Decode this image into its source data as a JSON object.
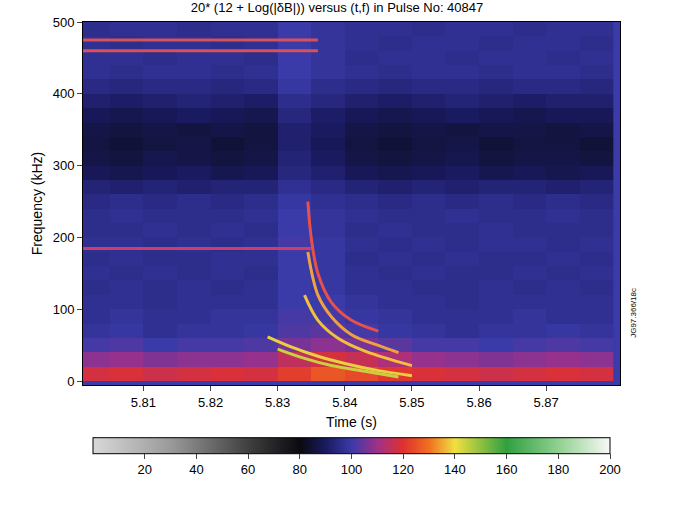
{
  "chart_data": {
    "type": "heatmap",
    "title": "20* (12 + Log(|δB|)) versus (t,f) in Pulse No: 40847",
    "x_label": "Time (s)",
    "y_label": "Frequency (kHz)",
    "annotation": "JG97.366/18c",
    "xlim": [
      5.801,
      5.881
    ],
    "ylim": [
      -5,
      500
    ],
    "xticks": [
      5.81,
      5.82,
      5.83,
      5.84,
      5.85,
      5.86,
      5.87
    ],
    "yticks": [
      0,
      100,
      200,
      300,
      400,
      500
    ],
    "heatmap": {
      "x": [
        5.8025,
        5.8075,
        5.8125,
        5.8175,
        5.8225,
        5.8275,
        5.8325,
        5.8375,
        5.8425,
        5.8475,
        5.8525,
        5.8575,
        5.8625,
        5.8675,
        5.8725,
        5.8775
      ],
      "y": [
        10,
        30,
        50,
        70,
        90,
        110,
        130,
        150,
        170,
        190,
        210,
        230,
        250,
        270,
        290,
        310,
        330,
        350,
        370,
        390,
        410,
        430,
        450,
        470,
        490
      ],
      "z": [
        [
          118,
          119,
          117,
          118,
          119,
          118,
          122,
          126,
          124,
          121,
          119,
          118,
          117,
          118,
          119,
          118
        ],
        [
          108,
          109,
          107,
          108,
          108,
          109,
          115,
          118,
          116,
          112,
          109,
          108,
          107,
          108,
          109,
          108
        ],
        [
          101,
          102,
          100,
          101,
          101,
          102,
          106,
          108,
          106,
          103,
          101,
          101,
          100,
          101,
          102,
          101
        ],
        [
          98,
          99,
          97,
          98,
          98,
          99,
          102,
          103,
          101,
          99,
          98,
          97,
          98,
          98,
          99,
          98
        ],
        [
          97,
          98,
          97,
          97,
          98,
          98,
          101,
          101,
          99,
          98,
          97,
          97,
          97,
          98,
          97,
          97
        ],
        [
          97,
          97,
          96,
          97,
          97,
          97,
          100,
          100,
          98,
          97,
          97,
          96,
          97,
          97,
          97,
          97
        ],
        [
          96,
          97,
          96,
          97,
          96,
          97,
          100,
          99,
          97,
          97,
          96,
          96,
          97,
          96,
          97,
          96
        ],
        [
          97,
          96,
          97,
          96,
          97,
          96,
          100,
          99,
          97,
          96,
          97,
          96,
          96,
          97,
          96,
          97
        ],
        [
          96,
          97,
          96,
          96,
          97,
          97,
          100,
          99,
          96,
          97,
          96,
          97,
          96,
          96,
          97,
          96
        ],
        [
          97,
          97,
          96,
          97,
          96,
          97,
          101,
          99,
          97,
          96,
          97,
          96,
          97,
          97,
          96,
          97
        ],
        [
          96,
          96,
          97,
          96,
          97,
          96,
          100,
          98,
          96,
          97,
          96,
          96,
          97,
          96,
          96,
          96
        ],
        [
          96,
          97,
          96,
          96,
          96,
          97,
          100,
          98,
          97,
          96,
          96,
          97,
          96,
          96,
          97,
          96
        ],
        [
          95,
          96,
          95,
          96,
          95,
          96,
          99,
          97,
          96,
          95,
          96,
          95,
          96,
          95,
          96,
          95
        ],
        [
          93,
          92,
          93,
          92,
          93,
          93,
          97,
          95,
          93,
          92,
          93,
          92,
          93,
          93,
          92,
          93
        ],
        [
          89,
          88,
          89,
          90,
          88,
          89,
          94,
          92,
          89,
          88,
          89,
          90,
          88,
          89,
          88,
          89
        ],
        [
          87,
          86,
          88,
          87,
          86,
          87,
          93,
          90,
          87,
          86,
          87,
          88,
          86,
          87,
          87,
          86
        ],
        [
          86,
          85,
          86,
          87,
          85,
          86,
          92,
          89,
          86,
          85,
          86,
          87,
          85,
          86,
          86,
          85
        ],
        [
          87,
          86,
          87,
          86,
          87,
          86,
          92,
          90,
          87,
          86,
          87,
          86,
          87,
          87,
          86,
          87
        ],
        [
          89,
          88,
          89,
          90,
          89,
          88,
          94,
          91,
          89,
          88,
          89,
          90,
          89,
          88,
          89,
          89
        ],
        [
          92,
          91,
          92,
          93,
          92,
          91,
          96,
          94,
          92,
          91,
          92,
          93,
          92,
          91,
          92,
          92
        ],
        [
          95,
          94,
          95,
          95,
          94,
          95,
          99,
          96,
          95,
          94,
          95,
          95,
          94,
          95,
          95,
          94
        ],
        [
          97,
          96,
          97,
          97,
          96,
          97,
          100,
          98,
          97,
          96,
          97,
          97,
          96,
          97,
          97,
          96
        ],
        [
          97,
          97,
          96,
          97,
          97,
          96,
          100,
          98,
          96,
          97,
          97,
          96,
          97,
          97,
          96,
          97
        ],
        [
          97,
          96,
          97,
          97,
          96,
          97,
          100,
          98,
          97,
          96,
          97,
          97,
          96,
          97,
          97,
          96
        ],
        [
          96,
          97,
          97,
          96,
          97,
          97,
          100,
          98,
          97,
          97,
          96,
          97,
          97,
          96,
          97,
          97
        ]
      ],
      "zlim": [
        0,
        200
      ],
      "zticks": [
        20,
        40,
        60,
        80,
        100,
        120,
        140,
        160,
        180,
        200
      ]
    },
    "series": [
      {
        "type": "line",
        "color": "#d8505a",
        "x": [
          5.801,
          5.836
        ],
        "y": [
          475,
          475
        ]
      },
      {
        "type": "line",
        "color": "#d8505a",
        "x": [
          5.801,
          5.836
        ],
        "y": [
          460,
          460
        ]
      },
      {
        "type": "line",
        "color": "#c8406a",
        "x": [
          5.801,
          5.835
        ],
        "y": [
          185,
          185
        ]
      },
      {
        "type": "line",
        "color": "#e8504a",
        "x": [
          5.8345,
          5.835,
          5.836,
          5.838,
          5.841,
          5.845
        ],
        "y": [
          250,
          200,
          150,
          110,
          85,
          70
        ]
      },
      {
        "type": "line",
        "color": "#f0a040",
        "x": [
          5.8345,
          5.836,
          5.838,
          5.841,
          5.845,
          5.848
        ],
        "y": [
          180,
          120,
          90,
          65,
          50,
          40
        ]
      },
      {
        "type": "line",
        "color": "#f0c040",
        "x": [
          5.834,
          5.836,
          5.839,
          5.843,
          5.847,
          5.85
        ],
        "y": [
          120,
          85,
          60,
          42,
          30,
          22
        ]
      },
      {
        "type": "line",
        "color": "#e8d040",
        "x": [
          5.8285,
          5.832,
          5.836,
          5.84,
          5.845,
          5.85
        ],
        "y": [
          62,
          48,
          35,
          25,
          15,
          8
        ]
      },
      {
        "type": "line",
        "color": "#c8d040",
        "x": [
          5.83,
          5.834,
          5.838,
          5.843,
          5.848
        ],
        "y": [
          45,
          32,
          22,
          14,
          6
        ]
      }
    ]
  }
}
